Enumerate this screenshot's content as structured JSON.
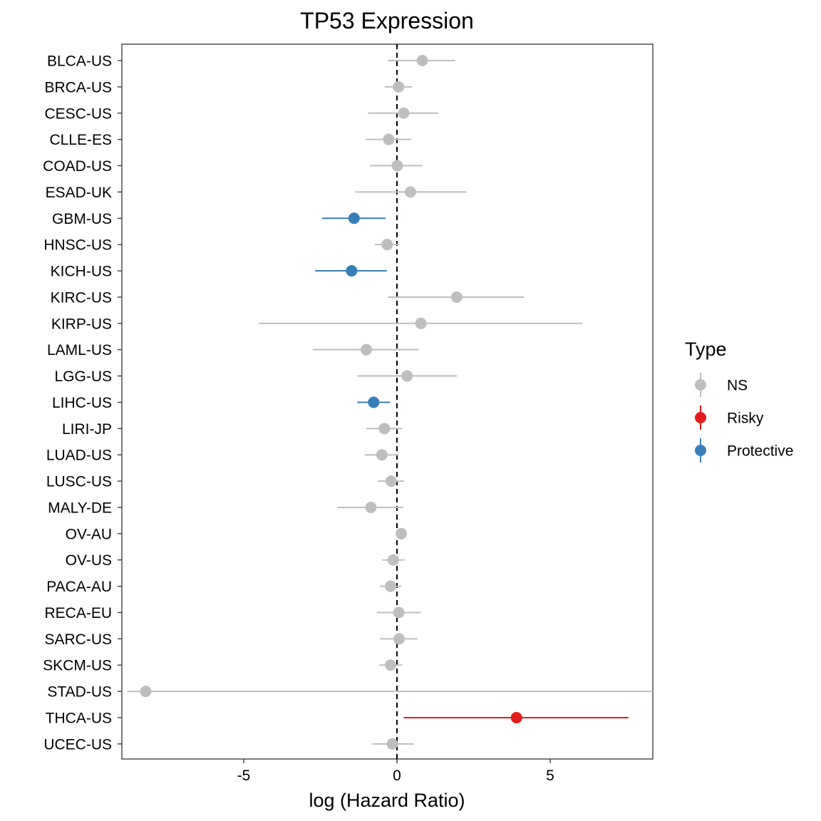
{
  "chart_data": {
    "type": "scatter",
    "title": "TP53 Expression",
    "xlabel": "log (Hazard Ratio)",
    "ylabel": "",
    "xlim": [
      -8.8,
      8.5
    ],
    "xticks": [
      -5,
      0,
      5
    ],
    "xtick_labels": [
      "-5",
      "0",
      "5"
    ],
    "reference_line": {
      "x": 0,
      "style": "dashed"
    },
    "grid": false,
    "legend": {
      "title": "Type",
      "placement": "right",
      "entries": [
        {
          "name": "NS",
          "color": "#bebebe"
        },
        {
          "name": "Risky",
          "color": "#e41a1c"
        },
        {
          "name": "Protective",
          "color": "#377eb8"
        }
      ]
    },
    "points": [
      {
        "category": "BLCA-US",
        "estimate": 0.83,
        "lower": -0.3,
        "upper": 1.9,
        "type": "NS"
      },
      {
        "category": "BRCA-US",
        "estimate": 0.05,
        "lower": -0.4,
        "upper": 0.5,
        "type": "NS"
      },
      {
        "category": "CESC-US",
        "estimate": 0.22,
        "lower": -0.95,
        "upper": 1.35,
        "type": "NS"
      },
      {
        "category": "CLLE-ES",
        "estimate": -0.27,
        "lower": -1.02,
        "upper": 0.46,
        "type": "NS"
      },
      {
        "category": "COAD-US",
        "estimate": 0.01,
        "lower": -0.88,
        "upper": 0.83,
        "type": "NS"
      },
      {
        "category": "ESAD-UK",
        "estimate": 0.44,
        "lower": -1.36,
        "upper": 2.27,
        "type": "NS"
      },
      {
        "category": "GBM-US",
        "estimate": -1.4,
        "lower": -2.44,
        "upper": -0.37,
        "type": "Protective"
      },
      {
        "category": "HNSC-US",
        "estimate": -0.32,
        "lower": -0.72,
        "upper": 0.07,
        "type": "NS"
      },
      {
        "category": "KICH-US",
        "estimate": -1.48,
        "lower": -2.67,
        "upper": -0.33,
        "type": "Protective"
      },
      {
        "category": "KIRC-US",
        "estimate": 1.95,
        "lower": -0.3,
        "upper": 4.15,
        "type": "NS"
      },
      {
        "category": "KIRP-US",
        "estimate": 0.78,
        "lower": -4.5,
        "upper": 6.05,
        "type": "NS"
      },
      {
        "category": "LAML-US",
        "estimate": -1.0,
        "lower": -2.75,
        "upper": 0.72,
        "type": "NS"
      },
      {
        "category": "LGG-US",
        "estimate": 0.33,
        "lower": -1.3,
        "upper": 1.96,
        "type": "NS"
      },
      {
        "category": "LIHC-US",
        "estimate": -0.76,
        "lower": -1.3,
        "upper": -0.23,
        "type": "Protective"
      },
      {
        "category": "LIRI-JP",
        "estimate": -0.41,
        "lower": -1.0,
        "upper": 0.17,
        "type": "NS"
      },
      {
        "category": "LUAD-US",
        "estimate": -0.49,
        "lower": -1.05,
        "upper": 0.05,
        "type": "NS"
      },
      {
        "category": "LUSC-US",
        "estimate": -0.19,
        "lower": -0.62,
        "upper": 0.24,
        "type": "NS"
      },
      {
        "category": "MALY-DE",
        "estimate": -0.85,
        "lower": -1.95,
        "upper": 0.21,
        "type": "NS"
      },
      {
        "category": "OV-AU",
        "estimate": 0.14,
        "lower": 0.0,
        "upper": 0.28,
        "type": "NS"
      },
      {
        "category": "OV-US",
        "estimate": -0.12,
        "lower": -0.48,
        "upper": 0.25,
        "type": "NS"
      },
      {
        "category": "PACA-AU",
        "estimate": -0.21,
        "lower": -0.56,
        "upper": 0.15,
        "type": "NS"
      },
      {
        "category": "RECA-EU",
        "estimate": 0.06,
        "lower": -0.66,
        "upper": 0.78,
        "type": "NS"
      },
      {
        "category": "SARC-US",
        "estimate": 0.07,
        "lower": -0.55,
        "upper": 0.68,
        "type": "NS"
      },
      {
        "category": "SKCM-US",
        "estimate": -0.21,
        "lower": -0.58,
        "upper": 0.17,
        "type": "NS"
      },
      {
        "category": "STAD-US",
        "estimate": -8.2,
        "lower": -8.8,
        "upper": 8.5,
        "type": "NS"
      },
      {
        "category": "THCA-US",
        "estimate": 3.9,
        "lower": 0.22,
        "upper": 7.55,
        "type": "Risky"
      },
      {
        "category": "UCEC-US",
        "estimate": -0.15,
        "lower": -0.82,
        "upper": 0.55,
        "type": "NS"
      }
    ]
  }
}
